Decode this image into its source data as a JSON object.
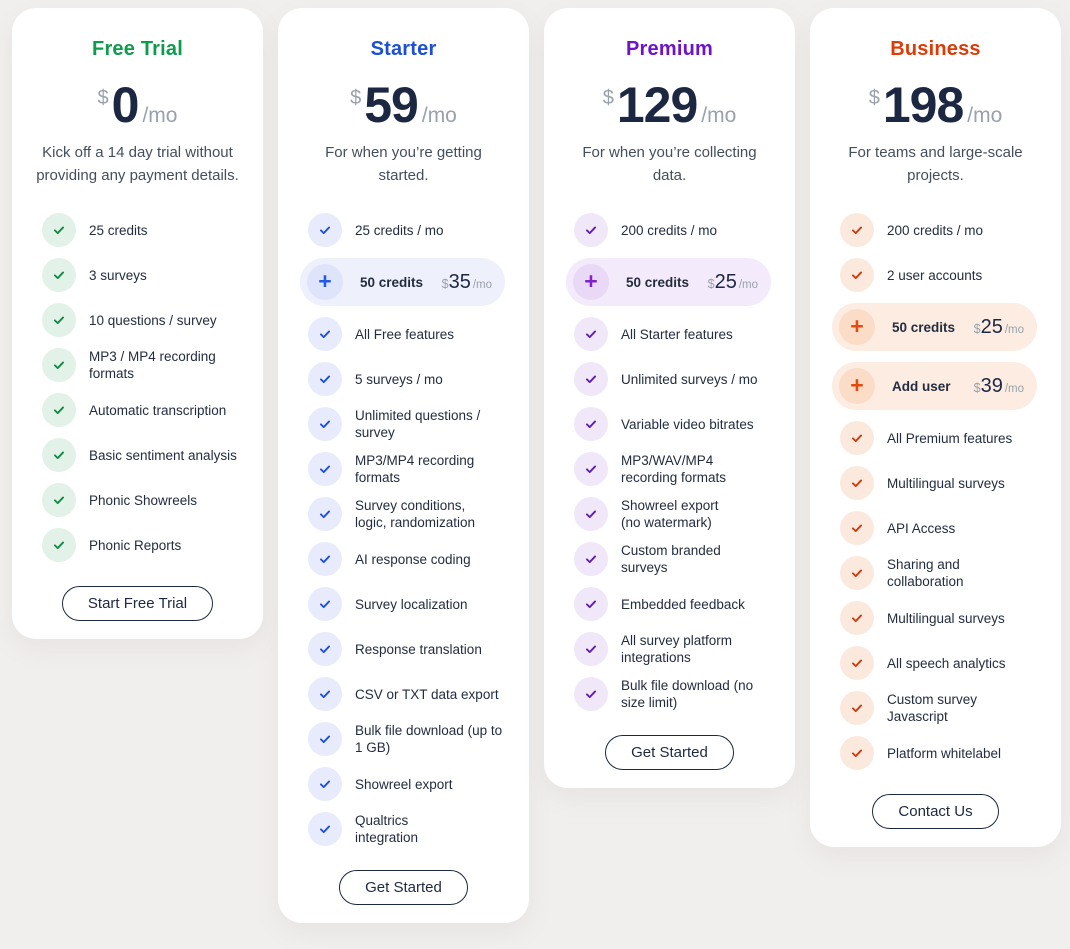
{
  "page": {
    "background": "#f1efee"
  },
  "plans": [
    {
      "id": "free-trial",
      "name": "Free Trial",
      "currency": "$",
      "price": "0",
      "period": "/mo",
      "description": "Kick off a 14 day trial without\nproviding any payment details.",
      "button": "Start Free Trial",
      "colors": {
        "accent": "#0c9d4c",
        "icon_bg": "#e2f2e8",
        "icon_color": "#0e8a41",
        "addon_bg": "#e2f2e8",
        "addon_icon_bg": "#d2ebdc",
        "addon_icon_color": "#0e8a41"
      },
      "rows": [
        {
          "type": "feature",
          "label": "25 credits"
        },
        {
          "type": "feature",
          "label": "3 surveys"
        },
        {
          "type": "feature",
          "label": "10 questions / survey"
        },
        {
          "type": "feature",
          "label": "MP3 / MP4 recording\nformats"
        },
        {
          "type": "feature",
          "label": "Automatic transcription"
        },
        {
          "type": "feature",
          "label": "Basic sentiment analysis"
        },
        {
          "type": "feature",
          "label": "Phonic Showreels"
        },
        {
          "type": "feature",
          "label": "Phonic Reports"
        }
      ]
    },
    {
      "id": "starter",
      "name": "Starter",
      "currency": "$",
      "price": "59",
      "period": "/mo",
      "description": "For when you’re getting\nstarted.",
      "button": "Get Started",
      "colors": {
        "accent": "#1c4fd9",
        "icon_bg": "#e7ebfb",
        "icon_color": "#1c4fd9",
        "addon_bg": "#eef1fc",
        "addon_icon_bg": "#dee4f9",
        "addon_icon_color": "#2458e8"
      },
      "rows": [
        {
          "type": "feature",
          "label": "25 credits / mo"
        },
        {
          "type": "addon",
          "label": "50 credits",
          "currency": "$",
          "price": "35",
          "period": "/mo"
        },
        {
          "type": "feature",
          "label": "All Free features"
        },
        {
          "type": "feature",
          "label": "5 surveys / mo"
        },
        {
          "type": "feature",
          "label": "Unlimited questions /\nsurvey"
        },
        {
          "type": "feature",
          "label": "MP3/MP4 recording\nformats"
        },
        {
          "type": "feature",
          "label": "Survey conditions,\nlogic, randomization"
        },
        {
          "type": "feature",
          "label": "AI response coding"
        },
        {
          "type": "feature",
          "label": "Survey localization"
        },
        {
          "type": "feature",
          "label": "Response translation"
        },
        {
          "type": "feature",
          "label": "CSV or TXT data export"
        },
        {
          "type": "feature",
          "label": "Bulk file download (up to\n1 GB)"
        },
        {
          "type": "feature",
          "label": "Showreel export"
        },
        {
          "type": "feature",
          "label": "Qualtrics\nintegration"
        }
      ]
    },
    {
      "id": "premium",
      "name": "Premium",
      "currency": "$",
      "price": "129",
      "period": "/mo",
      "description": "For when you’re collecting\ndata.",
      "button": "Get Started",
      "colors": {
        "accent": "#6e14c4",
        "icon_bg": "#f0e7f9",
        "icon_color": "#5f1cae",
        "addon_bg": "#f3eafb",
        "addon_icon_bg": "#e9d9f6",
        "addon_icon_color": "#8021cc"
      },
      "rows": [
        {
          "type": "feature",
          "label": "200 credits / mo"
        },
        {
          "type": "addon",
          "label": "50 credits",
          "currency": "$",
          "price": "25",
          "period": "/mo"
        },
        {
          "type": "feature",
          "label": "All Starter features"
        },
        {
          "type": "feature",
          "label": "Unlimited surveys / mo"
        },
        {
          "type": "feature",
          "label": "Variable video bitrates"
        },
        {
          "type": "feature",
          "label": "MP3/WAV/MP4\nrecording formats"
        },
        {
          "type": "feature",
          "label": "Showreel export\n(no watermark)"
        },
        {
          "type": "feature",
          "label": "Custom branded\nsurveys"
        },
        {
          "type": "feature",
          "label": "Embedded feedback"
        },
        {
          "type": "feature",
          "label": "All survey platform\nintegrations"
        },
        {
          "type": "feature",
          "label": "Bulk file download (no\nsize limit)"
        }
      ]
    },
    {
      "id": "business",
      "name": "Business",
      "currency": "$",
      "price": "198",
      "period": "/mo",
      "description": "For teams and large-scale\nprojects.",
      "button": "Contact Us",
      "colors": {
        "accent": "#dd3b07",
        "icon_bg": "#fce9de",
        "icon_color": "#cc390a",
        "addon_bg": "#fcece2",
        "addon_icon_bg": "#fadcc7",
        "addon_icon_color": "#e34a0d"
      },
      "rows": [
        {
          "type": "feature",
          "label": "200 credits / mo"
        },
        {
          "type": "feature",
          "label": "2 user accounts"
        },
        {
          "type": "addon",
          "label": "50 credits",
          "currency": "$",
          "price": "25",
          "period": "/mo"
        },
        {
          "type": "addon",
          "label": "Add user",
          "currency": "$",
          "price": "39",
          "period": "/mo"
        },
        {
          "type": "feature",
          "label": "All Premium features"
        },
        {
          "type": "feature",
          "label": "Multilingual surveys"
        },
        {
          "type": "feature",
          "label": "API Access"
        },
        {
          "type": "feature",
          "label": "Sharing and\ncollaboration"
        },
        {
          "type": "feature",
          "label": "Multilingual surveys"
        },
        {
          "type": "feature",
          "label": "All speech analytics"
        },
        {
          "type": "feature",
          "label": "Custom survey\nJavascript"
        },
        {
          "type": "feature",
          "label": "Platform whitelabel"
        }
      ]
    }
  ]
}
